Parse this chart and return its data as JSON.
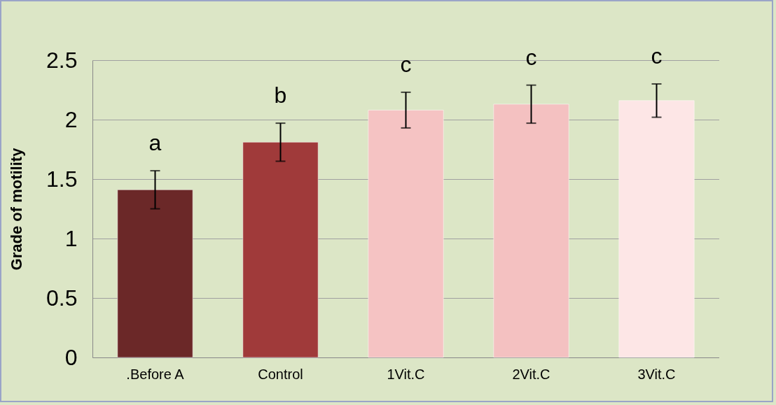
{
  "chart_data": {
    "type": "bar",
    "ylabel": "Grade of motility",
    "categories": [
      ".Before A",
      "Control",
      "1Vit.C",
      "2Vit.C",
      "3Vit.C"
    ],
    "values": [
      1.41,
      1.81,
      2.08,
      2.13,
      2.16
    ],
    "errors": [
      0.16,
      0.16,
      0.15,
      0.16,
      0.14
    ],
    "colors": [
      "#6b2828",
      "#a03a3a",
      "#f5c3c3",
      "#f4c1c1",
      "#fde6e6"
    ],
    "ylim": [
      0,
      2.5
    ],
    "yticks": [
      0,
      0.5,
      1,
      1.5,
      2,
      2.5
    ],
    "grid": "y",
    "annotations": [
      "a",
      "b",
      "c",
      "c",
      "c"
    ]
  }
}
